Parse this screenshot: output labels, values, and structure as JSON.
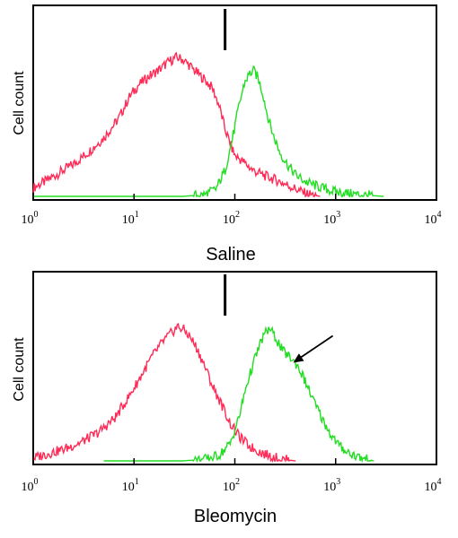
{
  "chart_data": [
    {
      "type": "line",
      "x_scale": "log",
      "xlim": [
        1,
        10000
      ],
      "x_ticks": [
        1,
        10,
        100,
        1000,
        10000
      ],
      "x_tick_labels": [
        {
          "base": "10",
          "exp": "0"
        },
        {
          "base": "10",
          "exp": "1"
        },
        {
          "base": "10",
          "exp": "2"
        },
        {
          "base": "10",
          "exp": "3"
        },
        {
          "base": "10",
          "exp": "4"
        }
      ],
      "xlabel": "Saline",
      "ylabel": "Cell count",
      "ylim": [
        0,
        1
      ],
      "grid": false,
      "marker_x": 80,
      "series": [
        {
          "color": "#ff2a55",
          "x": [
            1,
            1.3,
            1.8,
            2.5,
            3.5,
            5,
            7,
            9,
            11,
            14,
            18,
            22,
            26,
            30,
            35,
            40,
            50,
            60,
            70,
            80,
            90,
            100,
            120,
            150,
            200,
            260,
            350,
            500,
            700
          ],
          "y": [
            0.06,
            0.1,
            0.16,
            0.22,
            0.3,
            0.4,
            0.53,
            0.68,
            0.76,
            0.82,
            0.87,
            0.92,
            0.95,
            0.94,
            0.9,
            0.86,
            0.8,
            0.74,
            0.62,
            0.46,
            0.36,
            0.28,
            0.24,
            0.18,
            0.14,
            0.11,
            0.07,
            0.02,
            0.0
          ]
        },
        {
          "color": "#22dd22",
          "x": [
            1,
            10,
            30,
            50,
            65,
            80,
            95,
            110,
            125,
            140,
            155,
            170,
            190,
            210,
            240,
            280,
            330,
            400,
            500,
            650,
            800,
            1000,
            1300,
            1800,
            3000
          ],
          "y": [
            0.0,
            0.0,
            0.0,
            0.01,
            0.05,
            0.18,
            0.4,
            0.62,
            0.78,
            0.84,
            0.86,
            0.81,
            0.7,
            0.56,
            0.42,
            0.3,
            0.22,
            0.15,
            0.1,
            0.07,
            0.05,
            0.03,
            0.02,
            0.01,
            0.0
          ]
        }
      ]
    },
    {
      "type": "line",
      "x_scale": "log",
      "xlim": [
        1,
        10000
      ],
      "x_ticks": [
        1,
        10,
        100,
        1000,
        10000
      ],
      "x_tick_labels": [
        {
          "base": "10",
          "exp": "0"
        },
        {
          "base": "10",
          "exp": "1"
        },
        {
          "base": "10",
          "exp": "2"
        },
        {
          "base": "10",
          "exp": "3"
        },
        {
          "base": "10",
          "exp": "4"
        }
      ],
      "xlabel": "Bleomycin",
      "ylabel": "Cell count",
      "ylim": [
        0,
        1
      ],
      "grid": false,
      "marker_x": 80,
      "series": [
        {
          "color": "#ff2a55",
          "x": [
            1,
            1.4,
            2,
            3,
            4.5,
            6.5,
            9,
            12,
            15,
            19,
            23,
            27,
            31,
            36,
            42,
            50,
            60,
            75,
            90,
            110,
            140,
            180,
            230,
            300,
            400
          ],
          "y": [
            0.02,
            0.05,
            0.08,
            0.13,
            0.2,
            0.3,
            0.45,
            0.6,
            0.72,
            0.82,
            0.88,
            0.93,
            0.91,
            0.86,
            0.78,
            0.66,
            0.52,
            0.38,
            0.26,
            0.17,
            0.1,
            0.06,
            0.03,
            0.01,
            0.0
          ]
        },
        {
          "color": "#22dd22",
          "x": [
            5,
            30,
            50,
            70,
            90,
            110,
            130,
            160,
            190,
            220,
            260,
            300,
            350,
            420,
            500,
            600,
            750,
            900,
            1100,
            1400,
            1800,
            2400
          ],
          "y": [
            0.0,
            0.0,
            0.01,
            0.04,
            0.12,
            0.3,
            0.52,
            0.72,
            0.86,
            0.92,
            0.84,
            0.76,
            0.72,
            0.66,
            0.55,
            0.42,
            0.28,
            0.18,
            0.1,
            0.05,
            0.02,
            0.0
          ]
        }
      ],
      "annotation_arrow": {
        "x": 380,
        "y": 0.68
      }
    }
  ]
}
